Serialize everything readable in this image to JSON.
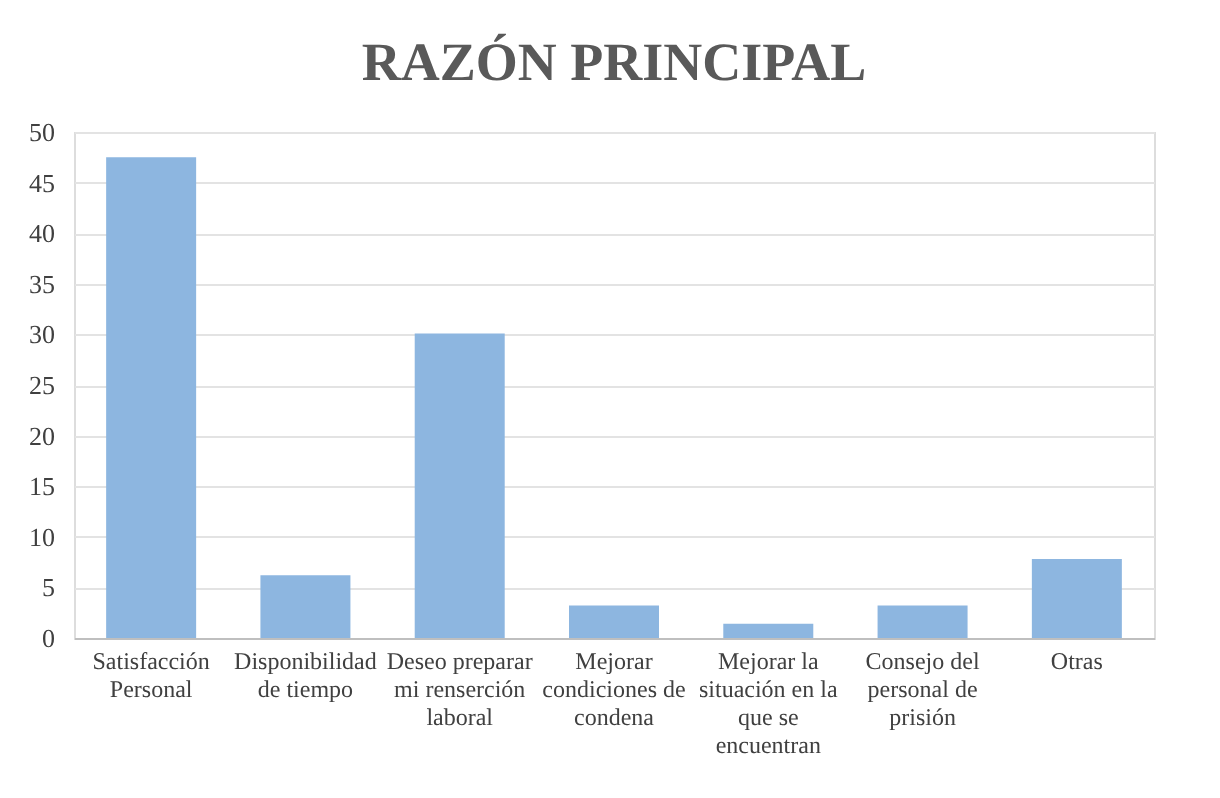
{
  "chart_data": {
    "type": "bar",
    "title": "RAZÓN PRINCIPAL",
    "categories": [
      "Satisfacción Personal",
      "Disponibilidad de tiempo",
      "Deseo preparar mi renserción laboral",
      "Mejorar condiciones de condena",
      "Mejorar la situación en la que se encuentran",
      "Consejo del personal de prisión",
      "Otras"
    ],
    "values": [
      47.5,
      6.2,
      30.1,
      3.2,
      1.4,
      3.2,
      7.8
    ],
    "color": "#8db6e0",
    "ylim": [
      0,
      50
    ],
    "yticks": [
      0,
      5,
      10,
      15,
      20,
      25,
      30,
      35,
      40,
      45,
      50
    ],
    "grid": "y"
  }
}
